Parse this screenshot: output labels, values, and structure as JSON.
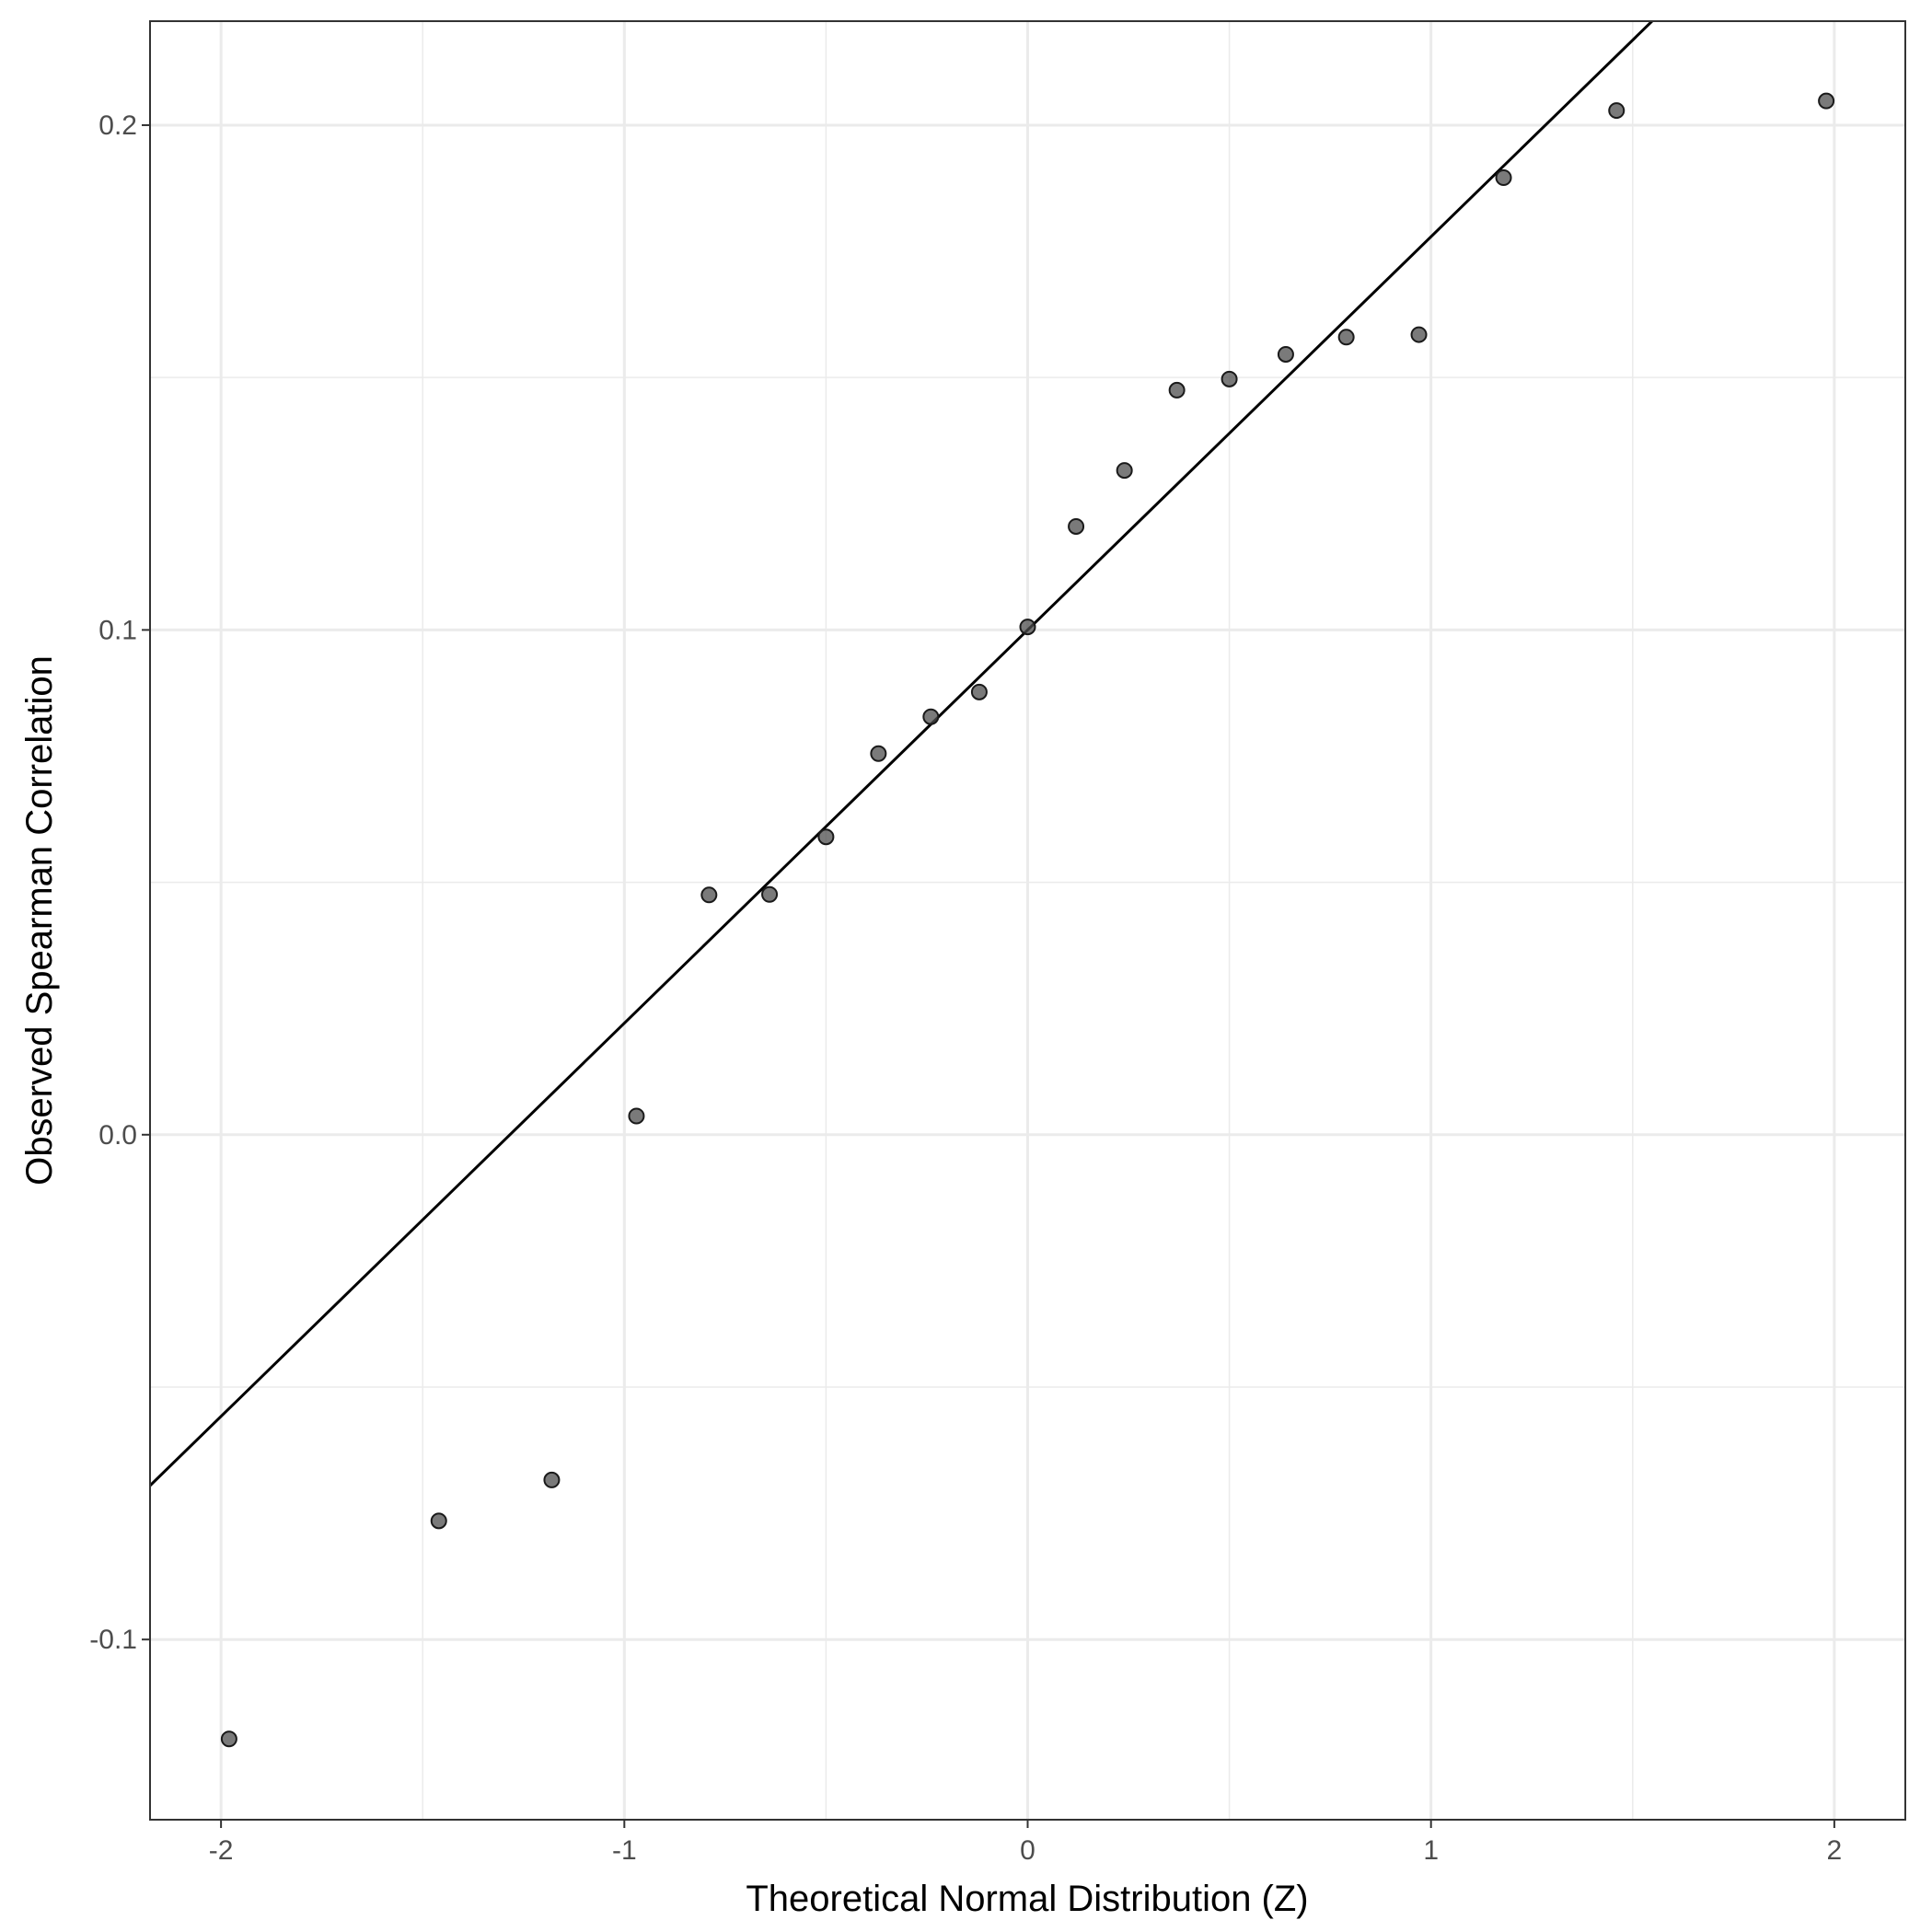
{
  "chart_data": {
    "type": "scatter",
    "title": "",
    "xlabel": "Theoretical Normal Distribution (Z)",
    "ylabel": "Observed Spearman Correlation",
    "xlim": [
      -2.176,
      2.176
    ],
    "ylim": [
      -0.1357,
      0.2206
    ],
    "x_ticks": [
      {
        "value": -2,
        "label": "-2"
      },
      {
        "value": -1,
        "label": "-1"
      },
      {
        "value": 0,
        "label": "0"
      },
      {
        "value": 1,
        "label": "1"
      },
      {
        "value": 2,
        "label": "2"
      }
    ],
    "y_ticks": [
      {
        "value": -0.1,
        "label": "-0.1"
      },
      {
        "value": 0.0,
        "label": "0.0"
      },
      {
        "value": 0.1,
        "label": "0.1"
      },
      {
        "value": 0.2,
        "label": "0.2"
      }
    ],
    "grid": true,
    "points": [
      {
        "x": -1.98,
        "y": -0.1197
      },
      {
        "x": -1.46,
        "y": -0.0765
      },
      {
        "x": -1.18,
        "y": -0.0684
      },
      {
        "x": -0.97,
        "y": 0.0037
      },
      {
        "x": -0.79,
        "y": 0.0475
      },
      {
        "x": -0.64,
        "y": 0.0476
      },
      {
        "x": -0.5,
        "y": 0.059
      },
      {
        "x": -0.37,
        "y": 0.0755
      },
      {
        "x": -0.24,
        "y": 0.0828
      },
      {
        "x": -0.12,
        "y": 0.0877
      },
      {
        "x": 0.0,
        "y": 0.1006
      },
      {
        "x": 0.12,
        "y": 0.1205
      },
      {
        "x": 0.24,
        "y": 0.1316
      },
      {
        "x": 0.37,
        "y": 0.1475
      },
      {
        "x": 0.5,
        "y": 0.1497
      },
      {
        "x": 0.64,
        "y": 0.1546
      },
      {
        "x": 0.79,
        "y": 0.158
      },
      {
        "x": 0.97,
        "y": 0.1585
      },
      {
        "x": 1.18,
        "y": 0.1896
      },
      {
        "x": 1.46,
        "y": 0.2029
      },
      {
        "x": 1.98,
        "y": 0.2048
      }
    ],
    "reference_line": {
      "intercept": 0.1,
      "slope": 0.0779
    },
    "point_color": "#4d4d4d",
    "line_color": "#000000"
  }
}
